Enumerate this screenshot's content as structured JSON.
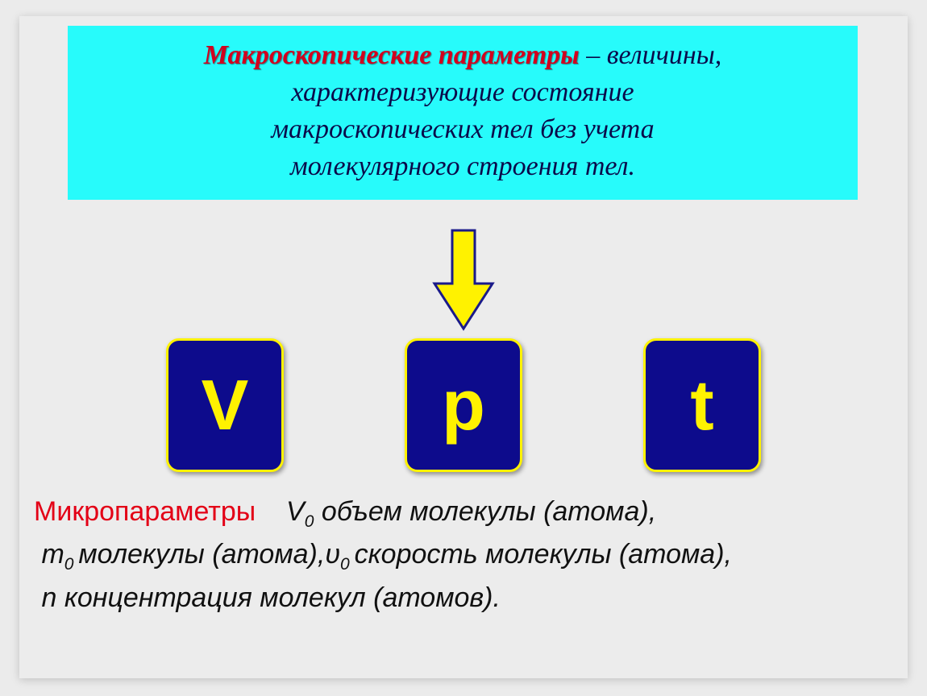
{
  "colors": {
    "page_bg": "#ebebeb",
    "slide_bg": "#ececec",
    "def_box_bg": "#27fbfb",
    "def_title_color": "#d2001e",
    "def_text_color": "#0a0a4a",
    "arrow_fill": "#fff200",
    "arrow_stroke": "#1a1a8a",
    "box_fill": "#0d0b8c",
    "box_border": "#fff200",
    "box_text": "#fff200",
    "micro_title_color": "#e30016",
    "micro_text_color": "#111111"
  },
  "definition": {
    "title": "Макроскопические параметры",
    "dash": " – ",
    "body_line1": "величины,",
    "body_line2": "характеризующие состояние",
    "body_line3": "макроскопических тел без учета",
    "body_line4": "молекулярного строения тел."
  },
  "params": {
    "v": "V",
    "p": "p",
    "t": "t"
  },
  "micro": {
    "title": "Микропараметры",
    "v0_sym": "V",
    "v0_sub": "0",
    "v0_text": " объем молекулы (атома),",
    "m0_sym": "m",
    "m0_sub": "0 ",
    "m0_text": "молекулы (атома),",
    "u0_sym": "υ",
    "u0_sub": "0 ",
    "u0_text": "скорость молекулы (атома),",
    "n_sym": "n",
    "n_text": " концентрация молекул (атомов)."
  },
  "layout": {
    "def_box_font_size": 34,
    "param_box_font_size": 88,
    "micro_font_size": 34,
    "param_box_width": 140,
    "param_box_height": 160,
    "param_box_radius": 16,
    "param_box_border_width": 3,
    "box_gap": 150
  }
}
